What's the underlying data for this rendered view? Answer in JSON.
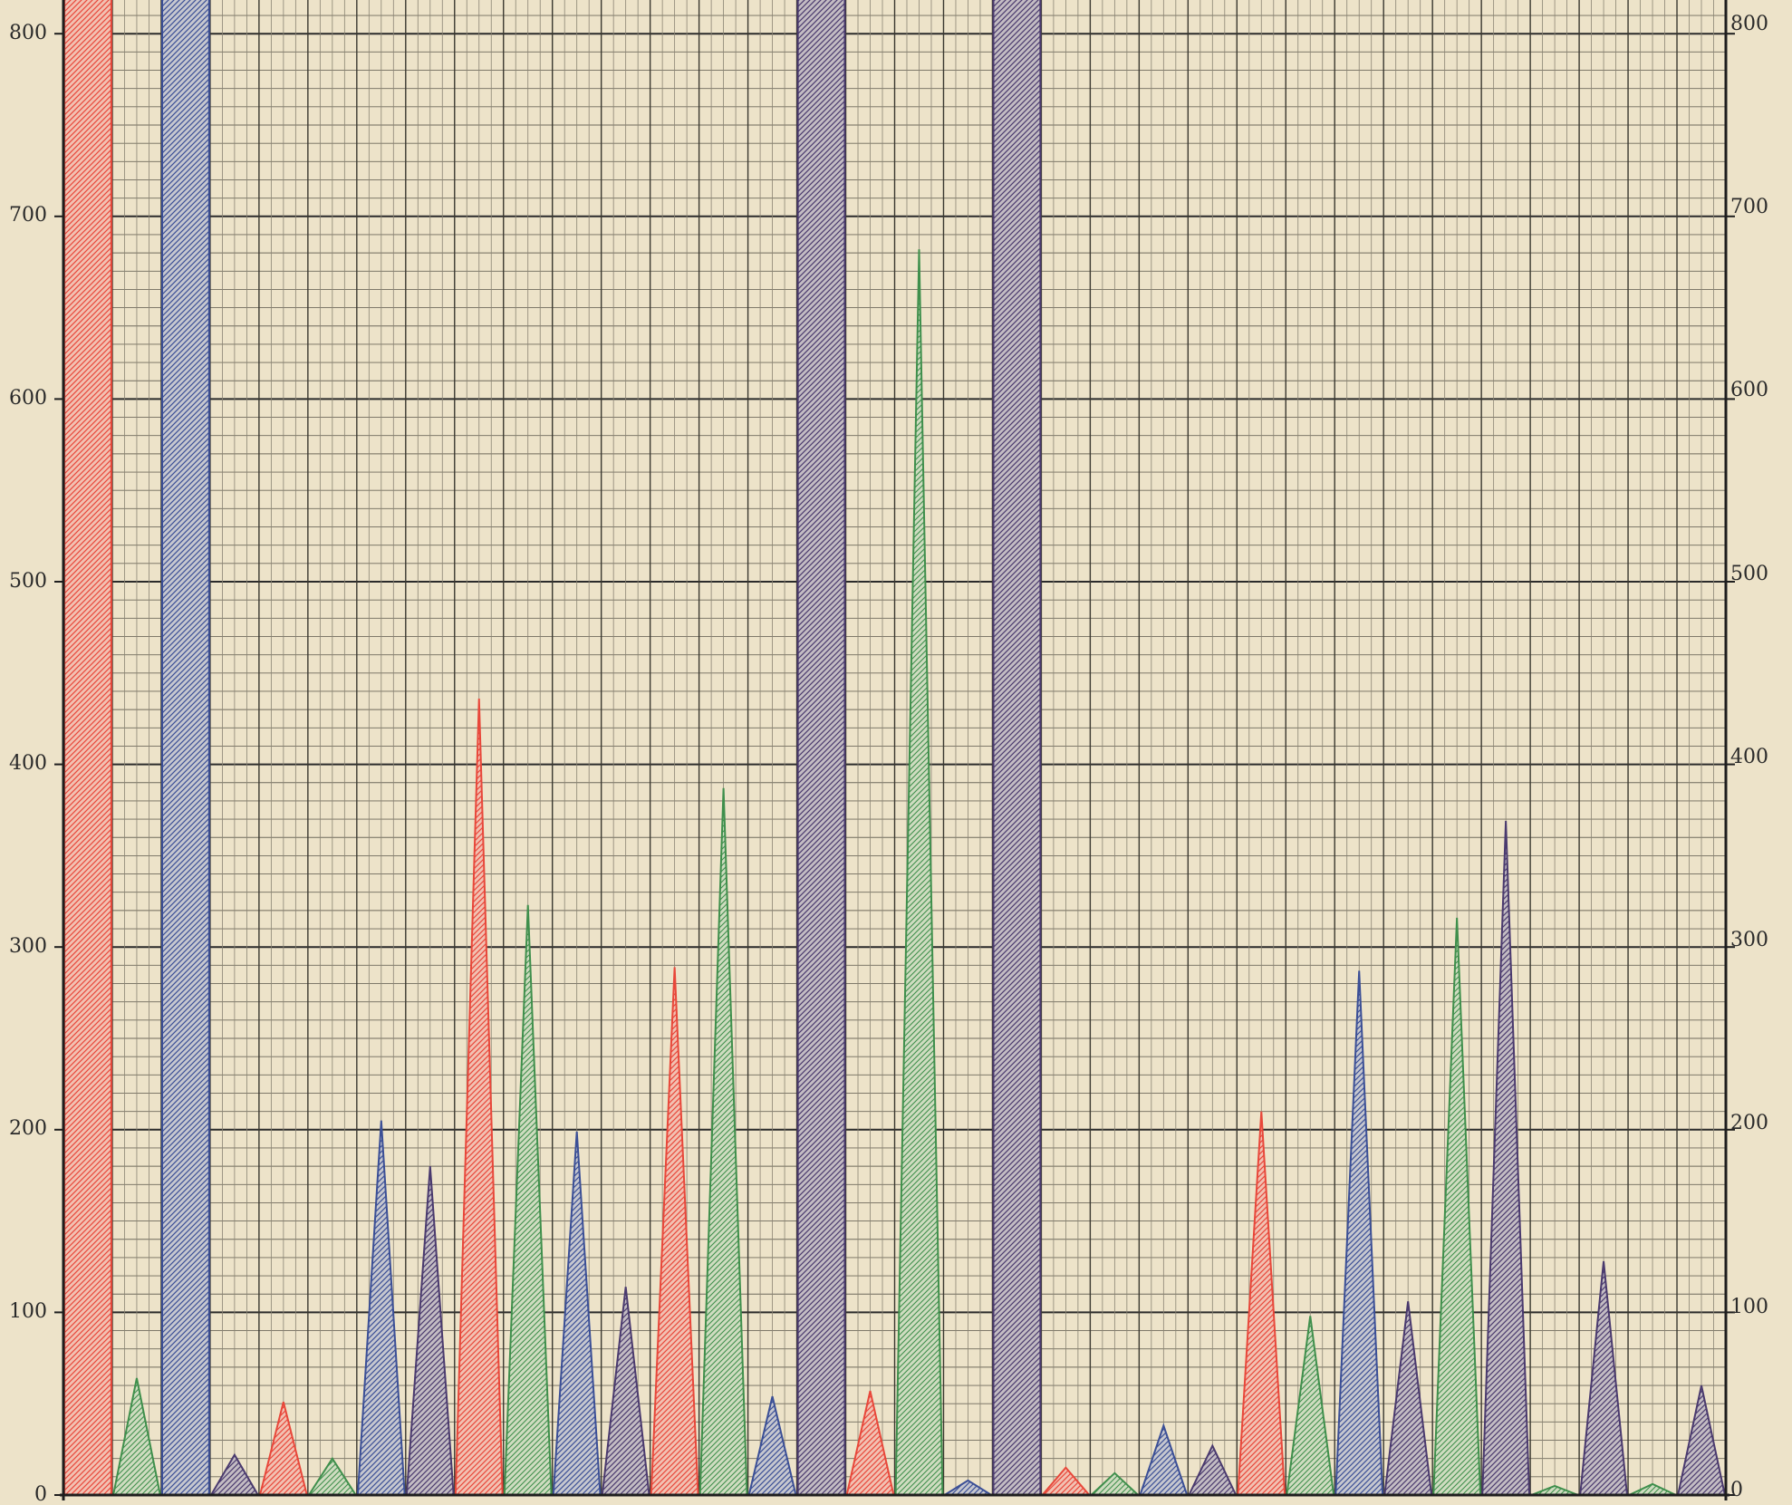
{
  "chart_data": {
    "type": "area",
    "title": "",
    "xlabel": "",
    "ylabel": "",
    "ylim": [
      0,
      830
    ],
    "y_ticks_left": [
      "800",
      "700",
      "600",
      "500",
      "400",
      "300",
      "200",
      "100",
      "0"
    ],
    "y_ticks_right": [
      "800",
      "700",
      "600",
      "500",
      "400",
      "300",
      "200",
      "100",
      "0"
    ],
    "grid": "on",
    "series_colors": {
      "red": "#e8473a",
      "green": "#3f8f4c",
      "blue": "#3b4f96",
      "purple": "#4a3a6e"
    },
    "peaks": [
      {
        "color": "red",
        "value": 830,
        "width": 1.0
      },
      {
        "color": "green",
        "value": 64,
        "width": 1.0
      },
      {
        "color": "blue",
        "value": 830,
        "width": 1.0
      },
      {
        "color": "purple",
        "value": 22,
        "width": 1.0
      },
      {
        "color": "red",
        "value": 51,
        "width": 1.0
      },
      {
        "color": "green",
        "value": 20,
        "width": 1.0
      },
      {
        "color": "blue",
        "value": 205,
        "width": 1.0
      },
      {
        "color": "purple",
        "value": 180,
        "width": 1.0
      },
      {
        "color": "red",
        "value": 436,
        "width": 1.0
      },
      {
        "color": "green",
        "value": 323,
        "width": 1.0
      },
      {
        "color": "blue",
        "value": 199,
        "width": 1.0
      },
      {
        "color": "purple",
        "value": 114,
        "width": 1.0
      },
      {
        "color": "red",
        "value": 289,
        "width": 1.0
      },
      {
        "color": "green",
        "value": 387,
        "width": 1.0
      },
      {
        "color": "blue",
        "value": 54,
        "width": 1.0
      },
      {
        "color": "purple",
        "value": 830,
        "width": 1.0
      },
      {
        "color": "red",
        "value": 57,
        "width": 1.0
      },
      {
        "color": "green",
        "value": 682,
        "width": 1.0
      },
      {
        "color": "blue",
        "value": 8,
        "width": 1.0
      },
      {
        "color": "purple",
        "value": 830,
        "width": 1.0
      },
      {
        "color": "red",
        "value": 15,
        "width": 1.0
      },
      {
        "color": "green",
        "value": 12,
        "width": 1.0
      },
      {
        "color": "blue",
        "value": 38,
        "width": 1.0
      },
      {
        "color": "purple",
        "value": 27,
        "width": 1.0
      },
      {
        "color": "red",
        "value": 210,
        "width": 1.0
      },
      {
        "color": "green",
        "value": 98,
        "width": 1.0
      },
      {
        "color": "blue",
        "value": 287,
        "width": 1.0
      },
      {
        "color": "purple",
        "value": 106,
        "width": 1.0
      },
      {
        "color": "green",
        "value": 316,
        "width": 1.0
      },
      {
        "color": "purple",
        "value": 369,
        "width": 1.0
      },
      {
        "color": "green",
        "value": 5,
        "width": 1.0
      },
      {
        "color": "purple",
        "value": 128,
        "width": 1.0
      },
      {
        "color": "green",
        "value": 6,
        "width": 1.0
      },
      {
        "color": "purple",
        "value": 60,
        "width": 1.0
      }
    ]
  }
}
